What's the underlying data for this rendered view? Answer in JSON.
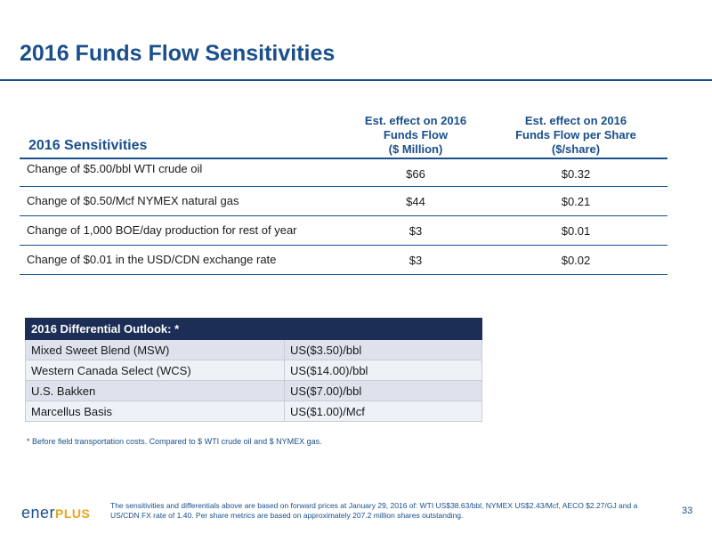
{
  "title": "2016 Funds Flow Sensitivities",
  "sensitivities": {
    "header_label": "2016 Sensitivities",
    "col1_header": [
      "Est. effect on 2016",
      "Funds Flow",
      "($ Million)"
    ],
    "col2_header": [
      "Est. effect on 2016",
      "Funds Flow per Share",
      "($/share)"
    ],
    "rows": [
      {
        "label": "Change of $5.00/bbl WTI crude oil",
        "funds_flow": "$66",
        "per_share": "$0.32"
      },
      {
        "label": "Change of $0.50/Mcf NYMEX natural gas",
        "funds_flow": "$44",
        "per_share": "$0.21"
      },
      {
        "label": "Change of 1,000 BOE/day production for rest of year",
        "funds_flow": "$3",
        "per_share": "$0.01"
      },
      {
        "label": "Change of $0.01 in the USD/CDN exchange rate",
        "funds_flow": "$3",
        "per_share": "$0.02"
      }
    ]
  },
  "differential": {
    "header": "2016 Differential Outlook: *",
    "header_value": "",
    "rows": [
      {
        "label": "Mixed Sweet Blend (MSW)",
        "value": "US($3.50)/bbl"
      },
      {
        "label": "Western Canada Select (WCS)",
        "value": "US($14.00)/bbl"
      },
      {
        "label": "U.S. Bakken",
        "value": "US($7.00)/bbl"
      },
      {
        "label": "Marcellus Basis",
        "value": "US($1.00)/Mcf"
      }
    ]
  },
  "footnote": "* Before field transportation costs. Compared to $ WTI crude oil and $ NYMEX gas.",
  "logo": {
    "text": "ener",
    "plus": "PLUS"
  },
  "bottom_note": "The sensitivities and differentials above are based on forward prices at January 29, 2016 of: WTI US$38.63/bbl, NYMEX US$2.43/Mcf, AECO $2.27/GJ and a US/CDN FX rate of 1.40. Per share metrics are based on approximately 207.2 million shares outstanding.",
  "page_number": "33",
  "colors": {
    "brand_blue": "#1a4f8b",
    "header_navy": "#1c2e55",
    "logo_plus": "#e8a51e"
  }
}
